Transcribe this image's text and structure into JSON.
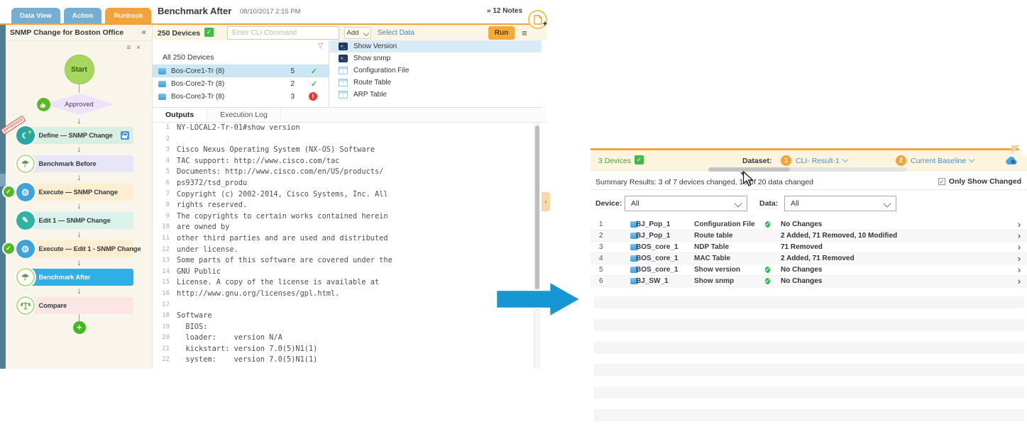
{
  "left_window": {
    "tabs": [
      {
        "label": "Data View",
        "active": false
      },
      {
        "label": "Action",
        "active": false
      },
      {
        "label": "Runbook",
        "active": true
      }
    ],
    "header": {
      "title": "Benchmark After",
      "timestamp": "08/10/2017 2:15 PM",
      "notes_label": "» 12 Notes"
    },
    "sidebar": {
      "title": "SNMP Change for Boston Office",
      "collapse_icon": "«",
      "menu_icon": "≡",
      "close_icon": "×",
      "start_label": "Start",
      "approved_label": "Approved",
      "stamp_label": "APPROVED",
      "steps": [
        {
          "label": "Define — SNMP Change",
          "bg": "#D9EFE3",
          "icon": "moon",
          "check": false,
          "lock": true,
          "stamp": true,
          "active": false
        },
        {
          "label": "Benchmark Before",
          "bg": "#E6E6F6",
          "icon": "umbrella",
          "check": false,
          "lock": false,
          "stamp": false,
          "active": false
        },
        {
          "label": "Execute — SNMP Change",
          "bg": "#FDEED2",
          "icon": "gear",
          "check": true,
          "lock": false,
          "stamp": false,
          "active": false
        },
        {
          "label": "Edit 1 — SNMP Change",
          "bg": "#D9F3EC",
          "icon": "pencil",
          "check": false,
          "lock": false,
          "stamp": false,
          "active": false
        },
        {
          "label": "Execute — Edit 1 - SNMP Change",
          "bg": "#FDEED2",
          "icon": "gear",
          "check": true,
          "lock": false,
          "stamp": false,
          "active": false
        },
        {
          "label": "Benchmark After",
          "bg": "#2EAFE6",
          "icon": "umbrella",
          "check": false,
          "lock": false,
          "stamp": false,
          "active": true
        },
        {
          "label": "Compare",
          "bg": "#FBE5E5",
          "icon": "scales",
          "check": false,
          "lock": false,
          "stamp": false,
          "active": false
        }
      ]
    },
    "command_bar": {
      "device_count": "250 Devices",
      "cli_placeholder": "Enter CLI Command",
      "add_label": "Add",
      "select_data_label": "Select Data",
      "run_label": "Run",
      "menu_icon": "≡"
    },
    "device_panel": {
      "all_label": "All 250 Devices",
      "rows": [
        {
          "name": "Bos-Core1-Tr (8)",
          "count": "5",
          "status": "ok",
          "selected": true
        },
        {
          "name": "Bos-Core2-Tr (8)",
          "count": "2",
          "status": "ok",
          "selected": false
        },
        {
          "name": "Bos-Core3-Tr (8)",
          "count": "3",
          "status": "error",
          "selected": false
        }
      ]
    },
    "data_panel": {
      "rows": [
        {
          "label": "Show Version",
          "icon": "terminal",
          "selected": true
        },
        {
          "label": "Show snmp",
          "icon": "terminal",
          "selected": false
        },
        {
          "label": "Configuration File",
          "icon": "table",
          "selected": false
        },
        {
          "label": "Route Table",
          "icon": "table",
          "selected": false
        },
        {
          "label": "ARP Table",
          "icon": "table",
          "selected": false
        }
      ]
    },
    "output_panel": {
      "tabs": [
        {
          "label": "Outputs",
          "active": true
        },
        {
          "label": "Execution Log",
          "active": false
        }
      ],
      "lines": [
        "NY-LOCAL2-Tr-01#show version",
        "",
        "Cisco Nexus Operating System (NX-OS) Software",
        "TAC support: http://www.cisco.com/tac",
        "Documents: http://www.cisco.com/en/US/products/",
        "ps9372/tsd_produ",
        "Copyright (c) 2002-2014, Cisco Systems, Inc. All",
        "rights reserved.",
        "The copyrights to certain works contained herein",
        "are owned by",
        "other third parties and are used and distributed",
        "under license.",
        "Some parts of this software are covered under the",
        "GNU Public",
        "License. A copy of the license is available at",
        "http://www.gnu.org/licenses/gpl.html.",
        "",
        "Software",
        "  BIOS:",
        "  loader:    version N/A",
        "  kickstart: version 7.0(5)N1(1)",
        "  system:    version 7.0(5)N1(1)"
      ]
    },
    "collapse_tab_icon": "‹"
  },
  "right_window": {
    "header": {
      "devices_label": "3 Devices",
      "dataset_label": "Dataset:",
      "dataset1_num": "1",
      "dataset1_label": "CLI- Result-1",
      "dataset2_num": "2",
      "dataset2_label": "Current Baseline"
    },
    "summary": {
      "text": "Summary Results: 3 of 7 devices changed, 10 of 20 data changed",
      "only_show_changed_label": "Only Show Changed",
      "checkbox_checked": "✓"
    },
    "filters": {
      "device_label": "Device:",
      "device_value": "All",
      "data_label": "Data:",
      "data_value": "All"
    },
    "table": {
      "rows": [
        {
          "idx": "1",
          "device": "BJ_Pop_1",
          "data": "Configuration File",
          "status": "ok",
          "change": "No Changes"
        },
        {
          "idx": "2",
          "device": "BJ_Pop_1",
          "data": "Route table",
          "status": "removed",
          "change": "2 Added, 71 Removed, 10 Modified"
        },
        {
          "idx": "3",
          "device": "BOS_core_1",
          "data": "NDP Table",
          "status": "removed",
          "change": "71 Removed"
        },
        {
          "idx": "4",
          "device": "BOS_core_1",
          "data": "MAC Table",
          "status": "removed",
          "change": "2 Added, 71 Removed"
        },
        {
          "idx": "5",
          "device": "BOS_core_1",
          "data": "Show version",
          "status": "ok",
          "change": "No Changes"
        },
        {
          "idx": "6",
          "device": "BJ_SW_1",
          "data": "Show snmp",
          "status": "ok",
          "change": "No Changes"
        }
      ],
      "placeholder_row_count": 6
    }
  },
  "colors": {
    "accent_orange": "#F2A33C",
    "tab_blue": "#78ADD2",
    "active_step_blue": "#2EAFE6",
    "ok_green": "#2DB84D",
    "error_red": "#E23B38",
    "link_blue": "#4A90C4"
  }
}
